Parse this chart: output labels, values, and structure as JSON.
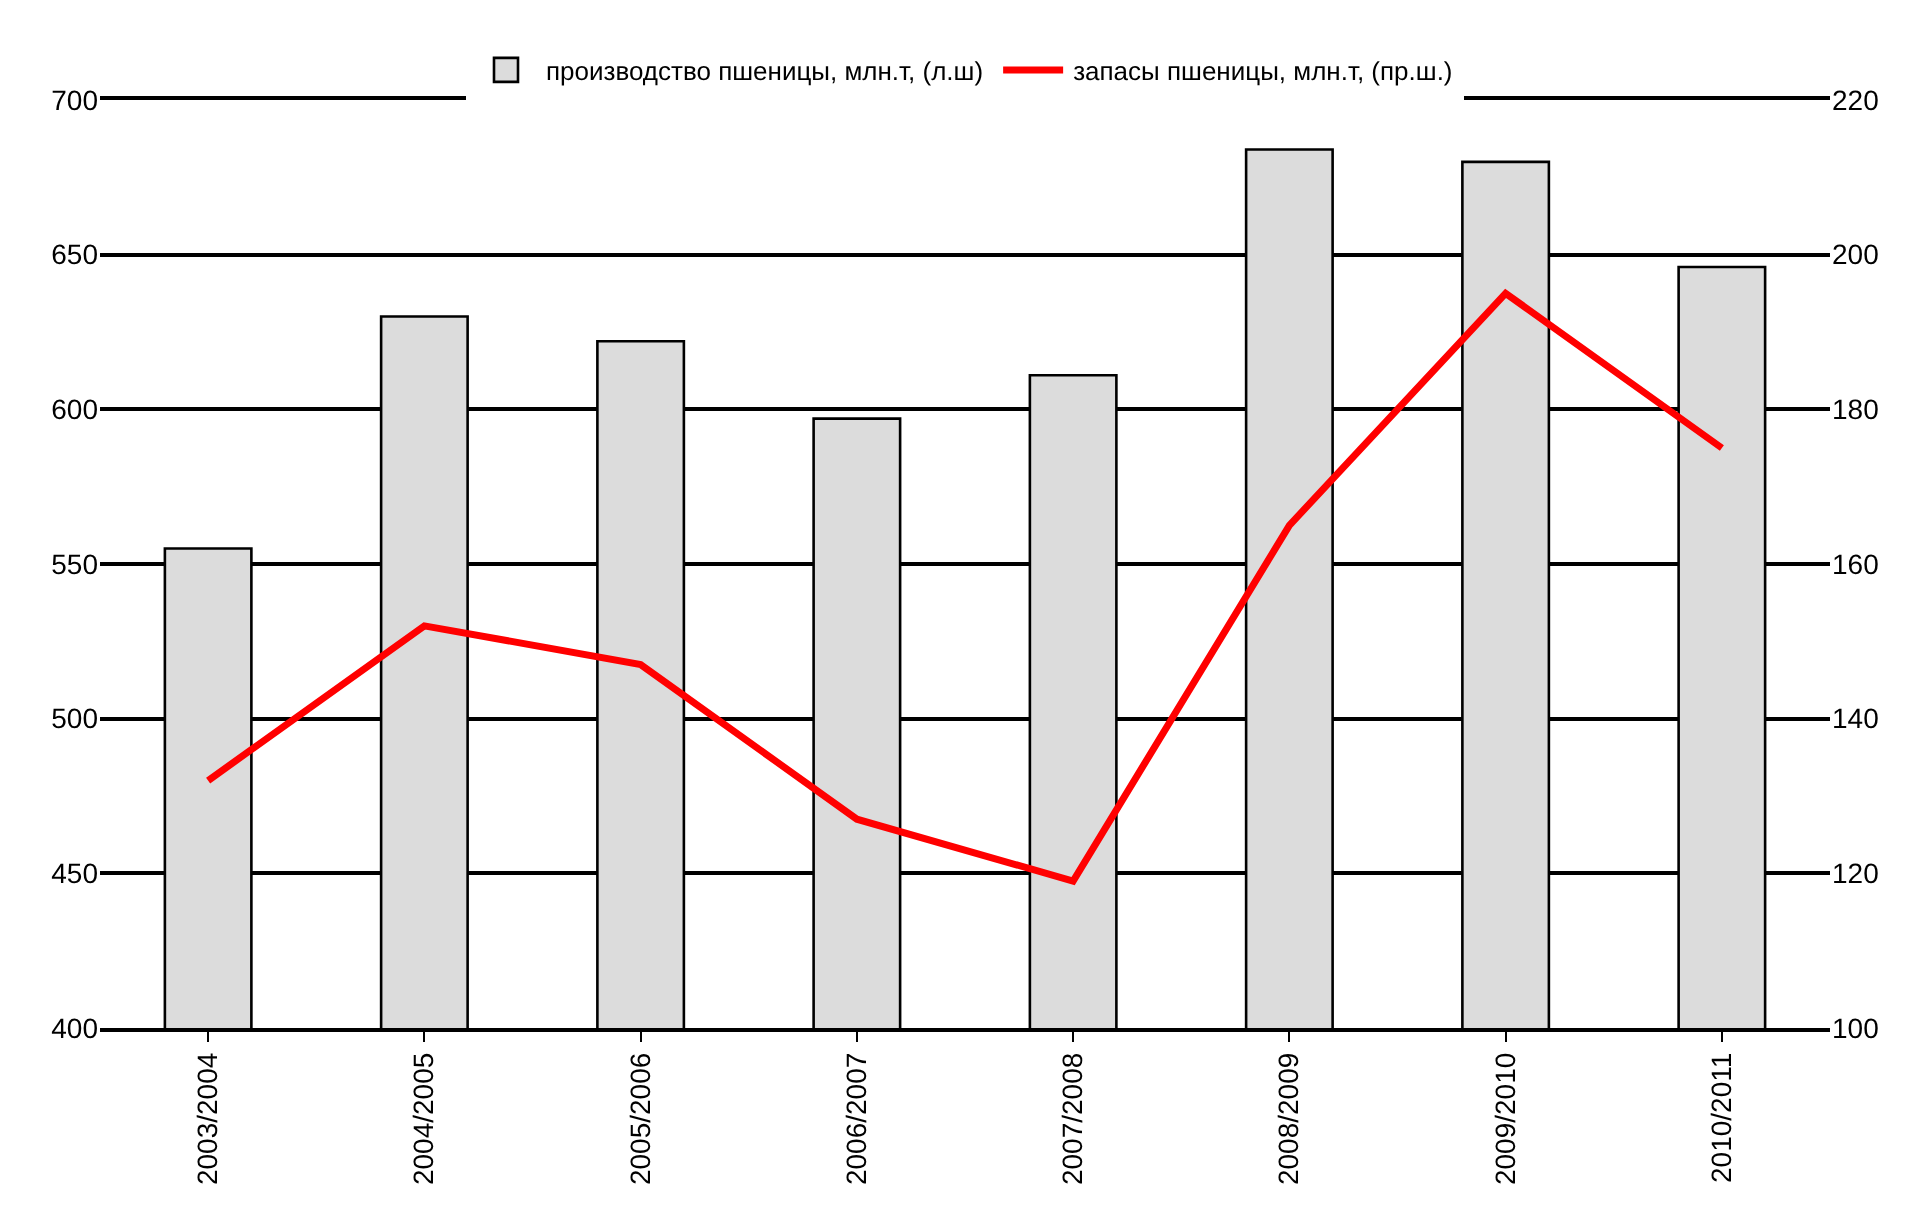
{
  "chart_data": {
    "type": "bar",
    "categories": [
      "2003/2004",
      "2004/2005",
      "2005/2006",
      "2006/2007",
      "2007/2008",
      "2008/2009",
      "2009/2010",
      "2010/2011"
    ],
    "series": [
      {
        "name": "производство пшеницы, млн.т, (л.ш)",
        "color": "#dcdcdc",
        "values": [
          555,
          630,
          622,
          597,
          611,
          684,
          680,
          646
        ]
      },
      {
        "name": "запасы пшеницы, млн.т, (пр.ш.)",
        "type": "line",
        "axis": "y2",
        "color": "#ff0000",
        "values": [
          132,
          152,
          147,
          127,
          119,
          165,
          195,
          175
        ]
      }
    ],
    "ylim": [
      400,
      700
    ],
    "yticks": [
      400,
      450,
      500,
      550,
      600,
      650,
      700
    ],
    "y2lim": [
      100,
      220
    ],
    "y2ticks": [
      100,
      120,
      140,
      160,
      180,
      200,
      220
    ],
    "grid": "y",
    "legend": "top",
    "marker": "none",
    "line_style": "solid"
  }
}
